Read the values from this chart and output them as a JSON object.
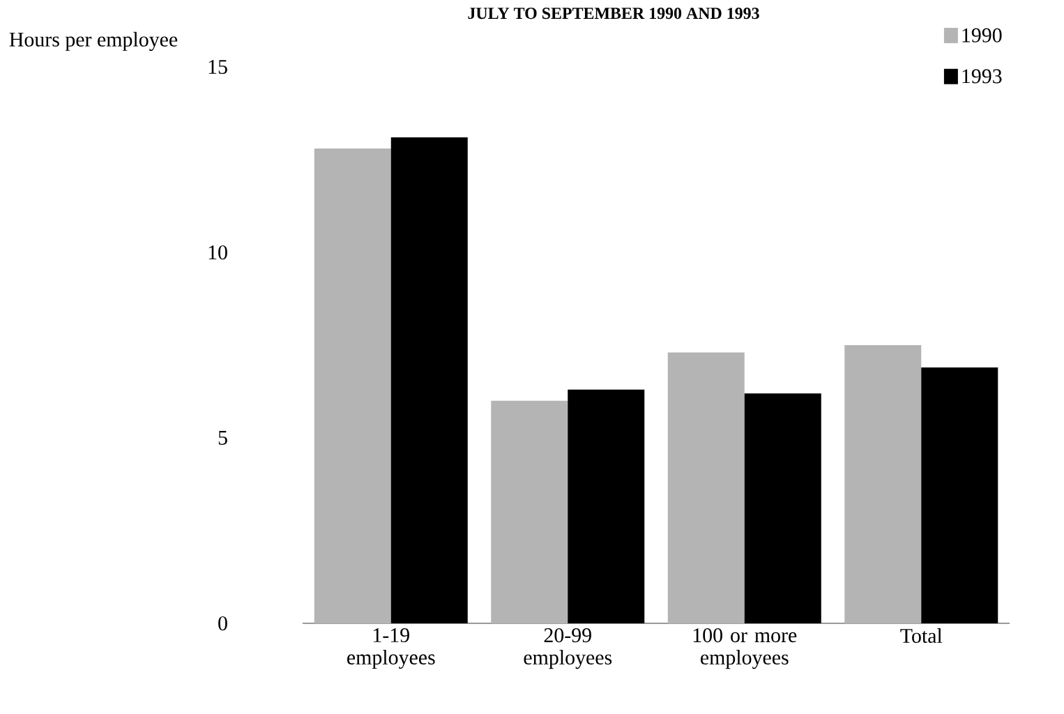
{
  "chart_data": {
    "type": "bar",
    "title": "JULY TO SEPTEMBER 1990 AND 1993",
    "ylabel": "Hours per employee",
    "categories": [
      "1-19 employees",
      "20-99 employees",
      "100 or more employees",
      "Total"
    ],
    "series": [
      {
        "name": "1990",
        "color": "#b4b4b4",
        "values": [
          12.8,
          6.0,
          7.3,
          7.5
        ]
      },
      {
        "name": "1993",
        "color": "#000000",
        "values": [
          13.1,
          6.3,
          6.2,
          6.9
        ]
      }
    ],
    "ylim": [
      0,
      15
    ],
    "yticks": [
      0,
      5,
      10,
      15
    ],
    "legend": "top right"
  }
}
